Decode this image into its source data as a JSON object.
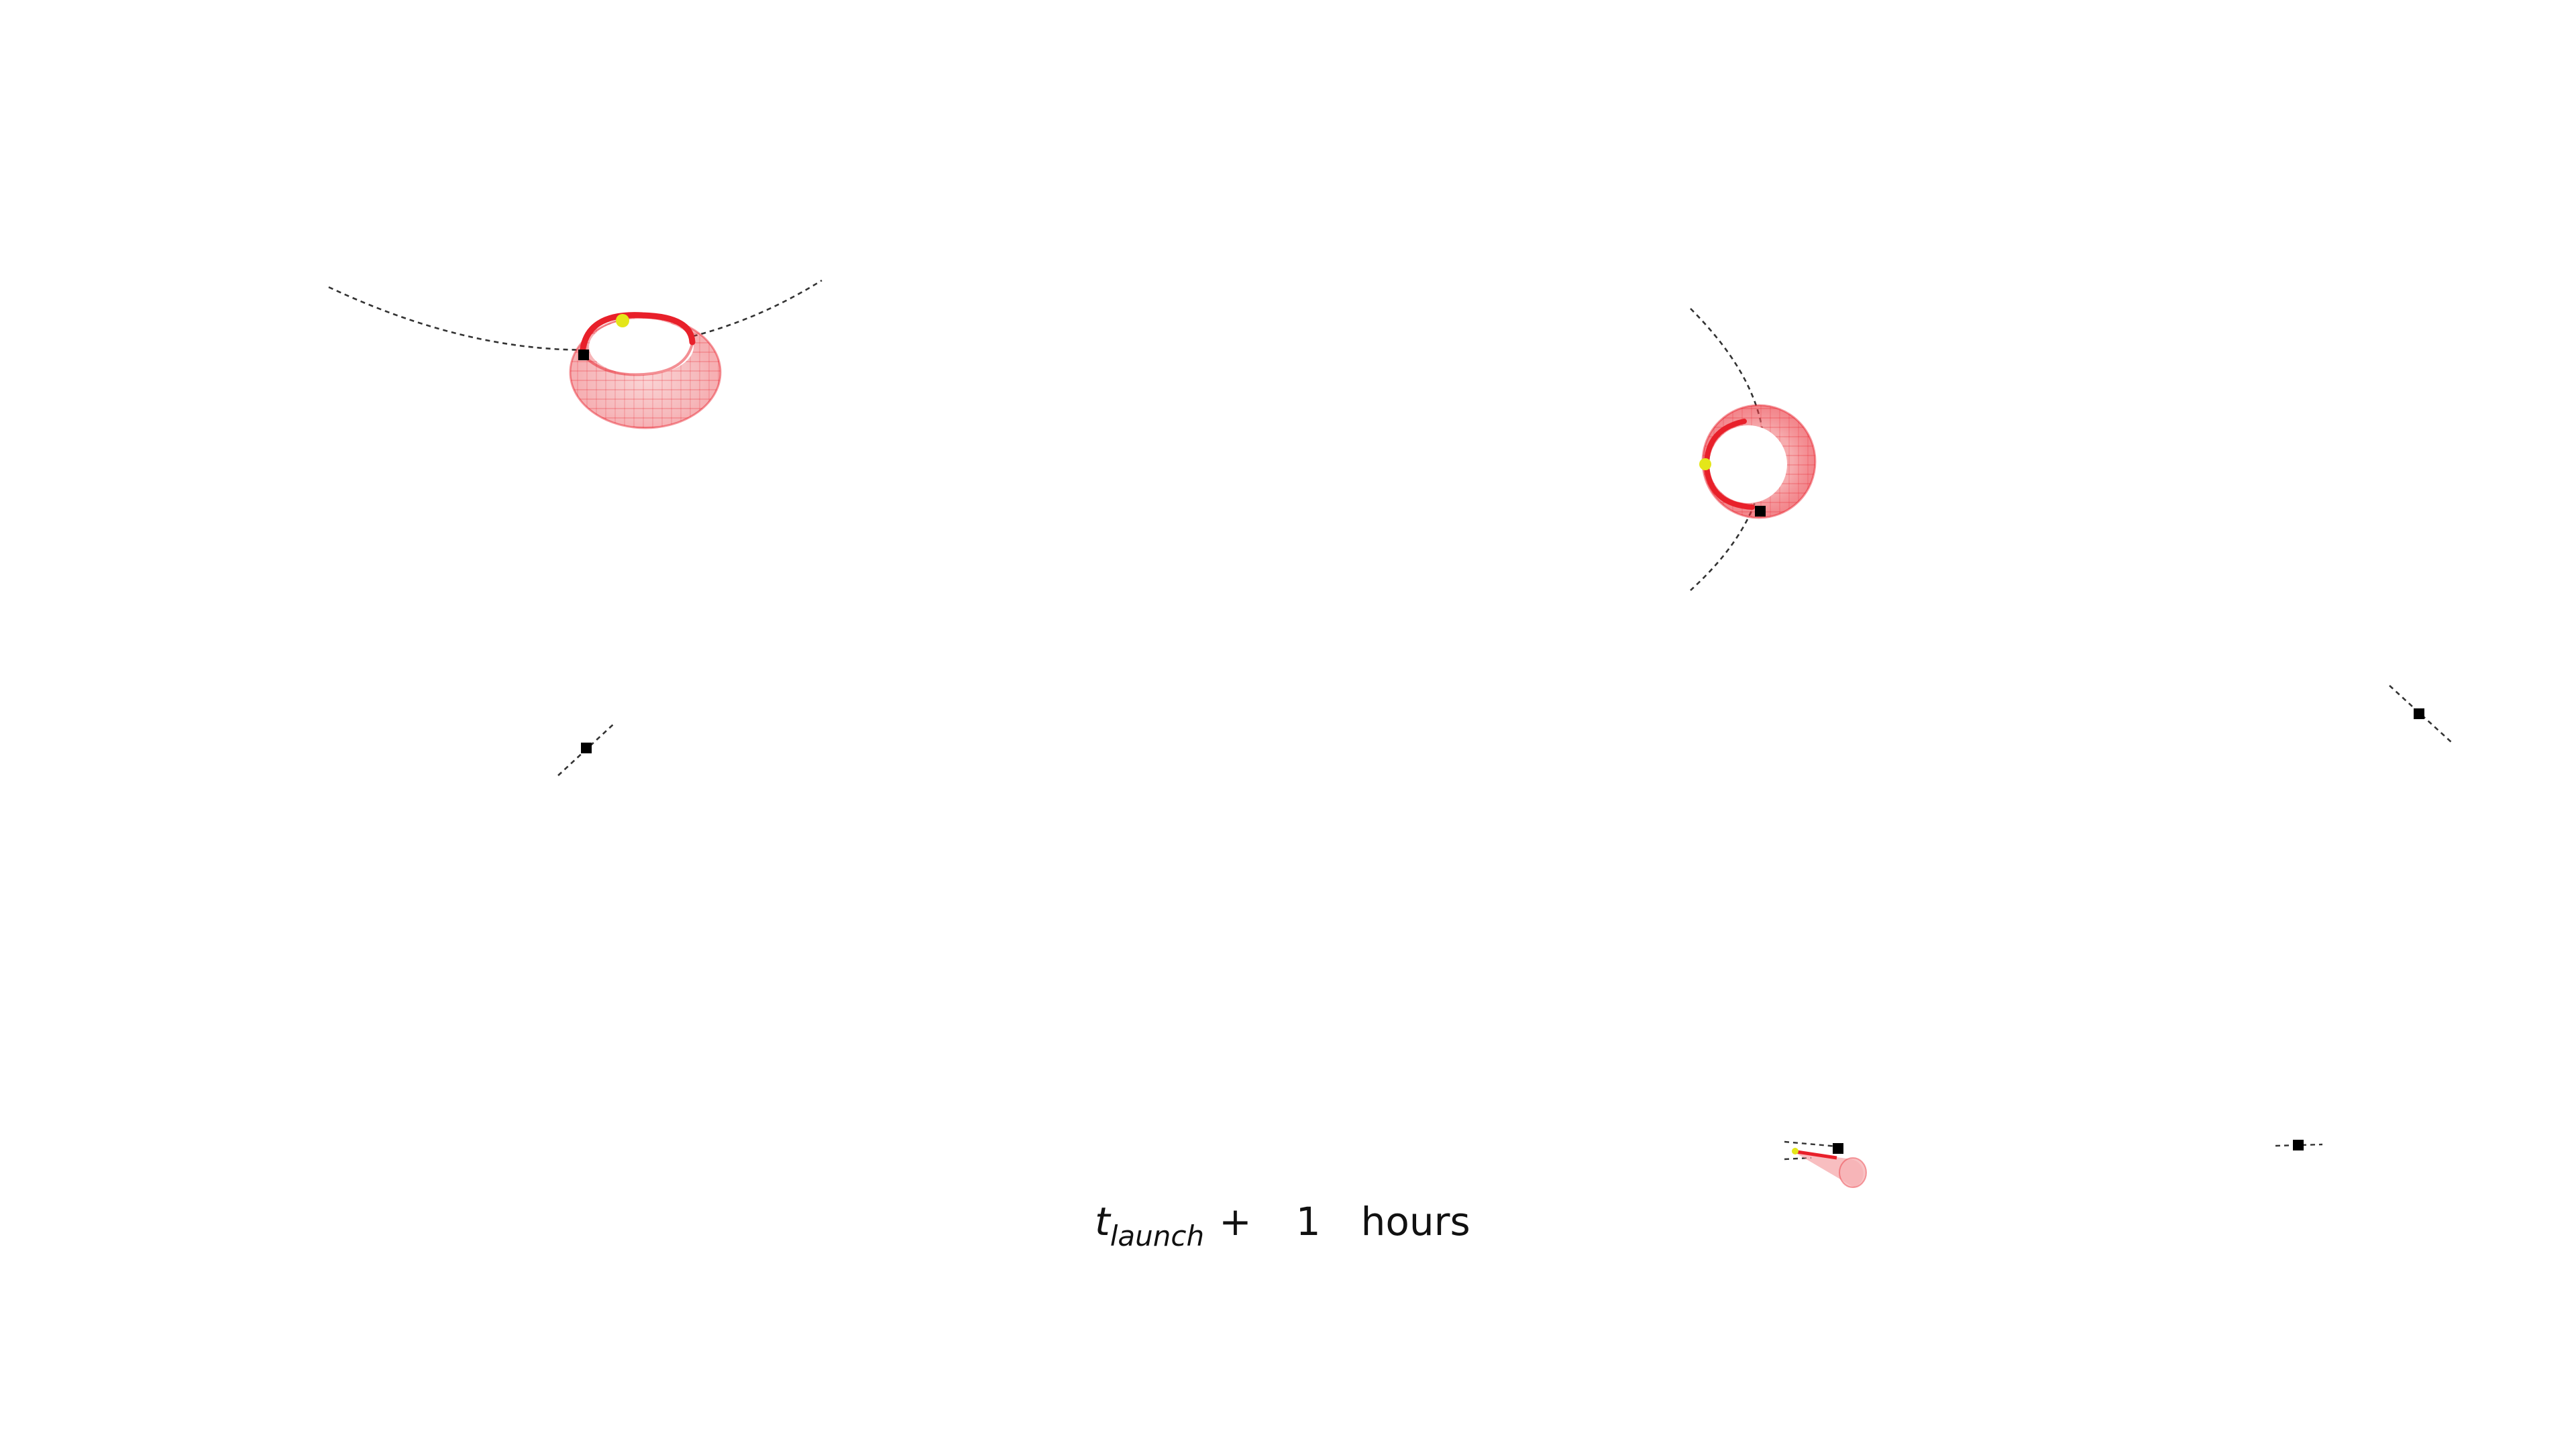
{
  "caption": {
    "symbol": "t",
    "subscript": "launch",
    "operator": "+",
    "value": "1",
    "unit": "hours"
  },
  "colors": {
    "envelope": "#e8202a",
    "spacecraft_marker": "#e4e619",
    "body_marker": "#000000",
    "orbit_line": "#333333",
    "background": "#ffffff"
  },
  "panels": [
    {
      "id": "top-left",
      "has_envelope": true,
      "envelope_view": "oblique-torus"
    },
    {
      "id": "top-right",
      "has_envelope": true,
      "envelope_view": "face-on-ring"
    },
    {
      "id": "bottom-left",
      "has_envelope": false
    },
    {
      "id": "bottom-right-a",
      "has_envelope": true,
      "envelope_view": "edge-on-cone"
    },
    {
      "id": "bottom-right-b",
      "has_envelope": false
    },
    {
      "id": "far-right",
      "has_envelope": false
    }
  ]
}
